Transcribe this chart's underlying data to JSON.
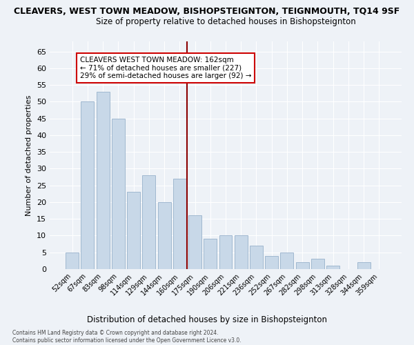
{
  "title": "CLEAVERS, WEST TOWN MEADOW, BISHOPSTEIGNTON, TEIGNMOUTH, TQ14 9SF",
  "subtitle": "Size of property relative to detached houses in Bishopsteignton",
  "xlabel": "Distribution of detached houses by size in Bishopsteignton",
  "ylabel": "Number of detached properties",
  "categories": [
    "52sqm",
    "67sqm",
    "83sqm",
    "98sqm",
    "114sqm",
    "129sqm",
    "144sqm",
    "160sqm",
    "175sqm",
    "190sqm",
    "206sqm",
    "221sqm",
    "236sqm",
    "252sqm",
    "267sqm",
    "282sqm",
    "298sqm",
    "313sqm",
    "328sqm",
    "344sqm",
    "359sqm"
  ],
  "values": [
    5,
    50,
    53,
    45,
    23,
    28,
    20,
    27,
    16,
    9,
    10,
    10,
    7,
    4,
    5,
    2,
    3,
    1,
    0,
    2,
    0
  ],
  "bar_color": "#c8d8e8",
  "bar_edge_color": "#a0b8d0",
  "marker_index": 7.5,
  "marker_color": "#8b0000",
  "ylim": [
    0,
    68
  ],
  "yticks": [
    0,
    5,
    10,
    15,
    20,
    25,
    30,
    35,
    40,
    45,
    50,
    55,
    60,
    65
  ],
  "annotation_title": "CLEAVERS WEST TOWN MEADOW: 162sqm",
  "annotation_line1": "← 71% of detached houses are smaller (227)",
  "annotation_line2": "29% of semi-detached houses are larger (92) →",
  "footer_line1": "Contains HM Land Registry data © Crown copyright and database right 2024.",
  "footer_line2": "Contains public sector information licensed under the Open Government Licence v3.0.",
  "background_color": "#eef2f7",
  "grid_color": "#ffffff",
  "title_fontsize": 9,
  "subtitle_fontsize": 8.5
}
